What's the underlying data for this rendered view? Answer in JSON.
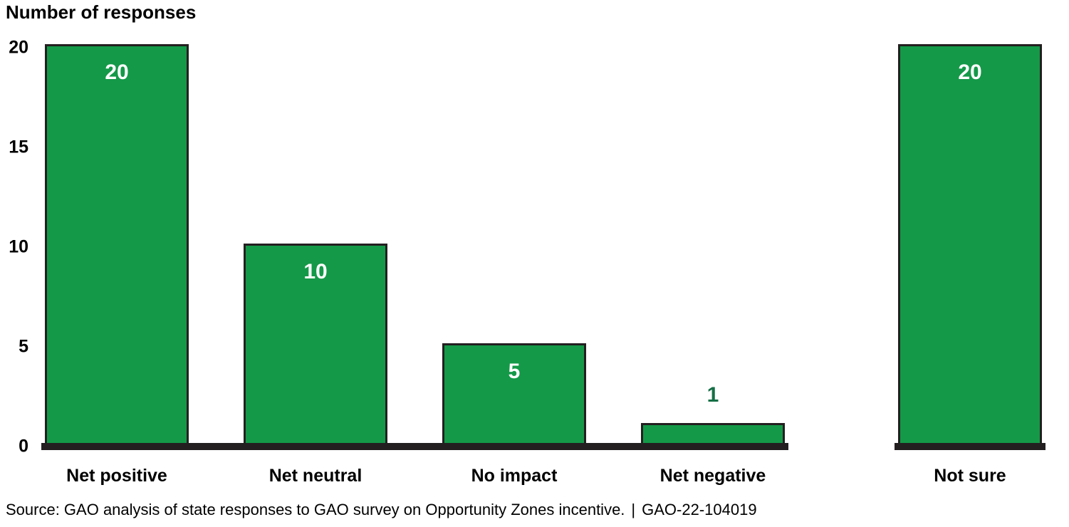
{
  "title": "Number of responses",
  "source": {
    "note": "Source: GAO analysis of state responses to GAO survey on Opportunity Zones incentive.",
    "separator": "|",
    "report_number": "GAO-22-104019"
  },
  "colors": {
    "bar_fill": "#149948",
    "bar_border": "#231f20",
    "axis": "#231f20",
    "value_label_inside": "#ffffff",
    "value_label_outside": "#156f46",
    "text": "#000000"
  },
  "chart_data": {
    "type": "bar",
    "title": "Number of responses",
    "ylabel": "Number of responses",
    "xlabel": "",
    "categories": [
      "Net positive",
      "Net neutral",
      "No impact",
      "Net negative",
      "Not sure"
    ],
    "values": [
      20,
      10,
      5,
      1,
      20
    ],
    "value_labels": [
      "20",
      "10",
      "5",
      "1",
      "20"
    ],
    "value_label_placement": [
      "inside",
      "inside",
      "inside",
      "outside",
      "inside"
    ],
    "ylim": [
      0,
      20
    ],
    "yticks": [
      0,
      5,
      10,
      15,
      20
    ],
    "grid": false,
    "legend": false,
    "notes": "Last bar (Not sure) is visually separated from the first four bars with its own baseline segment"
  }
}
